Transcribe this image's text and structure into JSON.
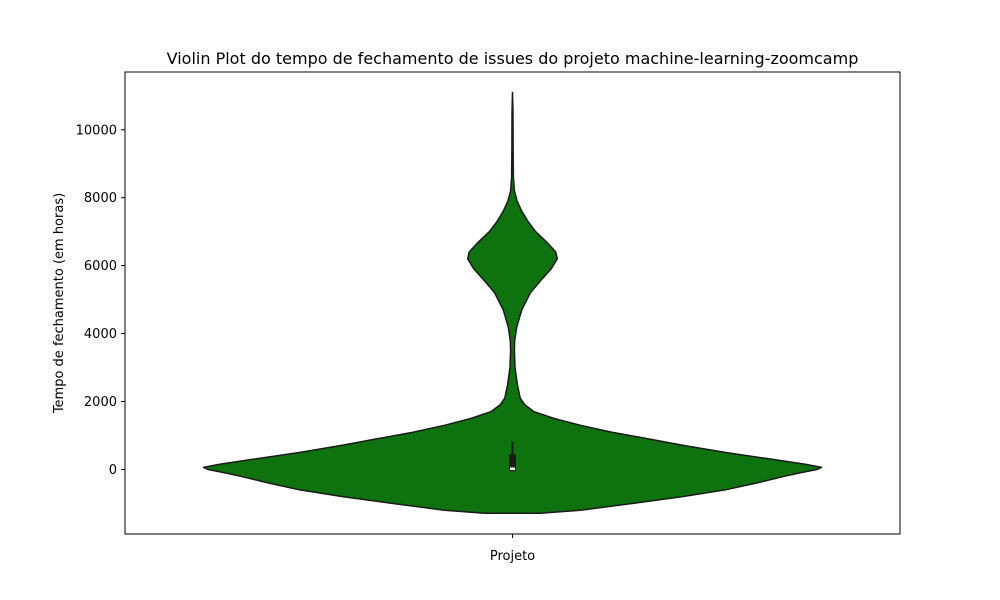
{
  "chart_data": {
    "type": "violin",
    "title": "Violin Plot do tempo de fechamento de issues do projeto machine-learning-zoomcamp",
    "xlabel": "Projeto",
    "ylabel": "Tempo de fechamento (em horas)",
    "categories": [
      ""
    ],
    "ylim": [
      -1900,
      11700
    ],
    "yticks": [
      0,
      2000,
      4000,
      6000,
      8000,
      10000
    ],
    "colors": {
      "violin_fill": "#0e730e",
      "violin_edge": "#1a1a1a",
      "box": "#1a1a1a",
      "median": "#ffffff"
    },
    "density_profile": [
      [
        -1290,
        0.09
      ],
      [
        -1200,
        0.22
      ],
      [
        -1000,
        0.39
      ],
      [
        -800,
        0.55
      ],
      [
        -600,
        0.69
      ],
      [
        -400,
        0.79
      ],
      [
        -200,
        0.88
      ],
      [
        -100,
        0.93
      ],
      [
        0,
        0.985
      ],
      [
        60,
        1.0
      ],
      [
        150,
        0.95
      ],
      [
        300,
        0.84
      ],
      [
        500,
        0.69
      ],
      [
        700,
        0.56
      ],
      [
        900,
        0.44
      ],
      [
        1100,
        0.32
      ],
      [
        1300,
        0.22
      ],
      [
        1500,
        0.135
      ],
      [
        1700,
        0.07
      ],
      [
        1900,
        0.04
      ],
      [
        2100,
        0.025
      ],
      [
        2500,
        0.016
      ],
      [
        3000,
        0.008
      ],
      [
        3500,
        0.006
      ],
      [
        3800,
        0.007
      ],
      [
        4200,
        0.014
      ],
      [
        4700,
        0.03
      ],
      [
        5200,
        0.058
      ],
      [
        5600,
        0.095
      ],
      [
        5900,
        0.125
      ],
      [
        6200,
        0.145
      ],
      [
        6400,
        0.14
      ],
      [
        6700,
        0.11
      ],
      [
        7000,
        0.075
      ],
      [
        7300,
        0.05
      ],
      [
        7600,
        0.03
      ],
      [
        7900,
        0.015
      ],
      [
        8200,
        0.006
      ],
      [
        8600,
        0.003
      ],
      [
        9500,
        0.002
      ],
      [
        10500,
        0.0015
      ],
      [
        11100,
        0.0
      ]
    ],
    "box": {
      "q1": -50,
      "median": 20,
      "q3": 450,
      "whisker_low": -50,
      "whisker_high": 820
    }
  }
}
